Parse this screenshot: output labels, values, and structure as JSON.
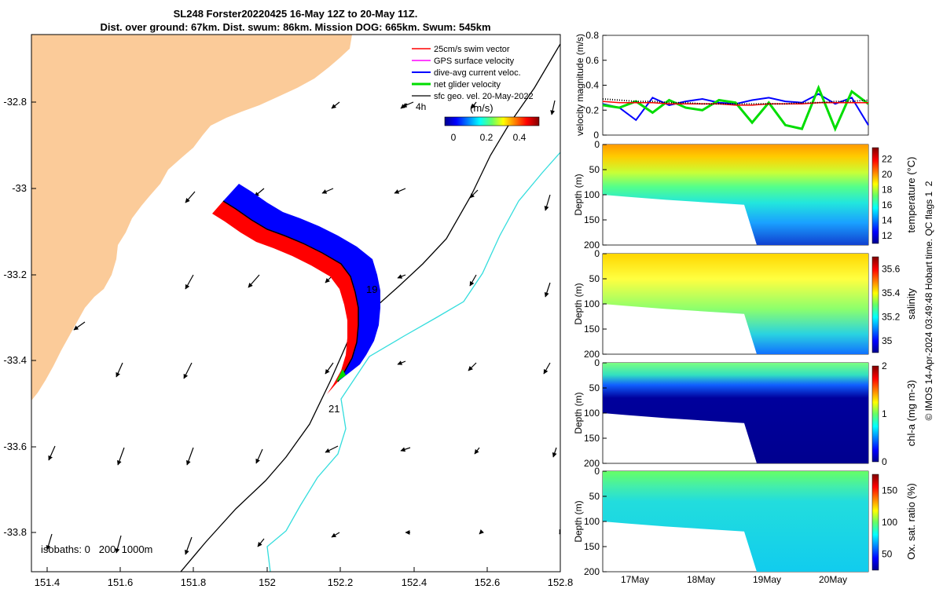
{
  "title": {
    "line1": "SL248 Forster20220425 16-May 12Z to 20-May 11Z.",
    "line2": "Dist. over ground: 67km. Dist. swum: 86km. Mission DOG: 665km. Swum: 545km"
  },
  "colors": {
    "land": "#FBCB99",
    "swim_vector": "#ff0000",
    "gps_velocity": "#ff00ff",
    "dive_avg": "#0000ff",
    "net_glider": "#00dd00",
    "geo_vel": "#000000",
    "isobath_200": "#000000",
    "isobath_1000": "#33dddd"
  },
  "map": {
    "legend": [
      {
        "key": "swim",
        "label": "25cm/s swim vector"
      },
      {
        "key": "gps",
        "label": "GPS surface velocity"
      },
      {
        "key": "dive",
        "label": "dive-avg current veloc."
      },
      {
        "key": "net",
        "label": "net glider velocity"
      },
      {
        "key": "geo",
        "label": "sfc geo. vel. 20-May-2022"
      }
    ],
    "scale_arrow_label": "4h",
    "colorbar_label": "(m/s)",
    "colorbar_ticks": [
      "0",
      "0.2",
      "0.4"
    ],
    "isobaths_label": "isobaths: 0   200  1000m",
    "day_labels": [
      "19",
      "21"
    ],
    "x_ticks": [
      "151.4",
      "151.6",
      "151.8",
      "152",
      "152.2",
      "152.4",
      "152.6",
      "152.8"
    ],
    "y_ticks": [
      "-32.8",
      "-33",
      "-33.2",
      "-33.4",
      "-33.6",
      "-33.8"
    ]
  },
  "chart_data": [
    {
      "type": "line",
      "ylabel": "velocity magnitude (m/s)",
      "ylim": [
        0,
        0.8
      ],
      "y_ticks": [
        "0",
        "0.2",
        "0.4",
        "0.6",
        "0.8"
      ],
      "x": [
        0,
        0.25,
        0.5,
        0.75,
        1,
        1.25,
        1.5,
        1.75,
        2,
        2.25,
        2.5,
        2.75,
        3,
        3.25,
        3.5,
        3.75,
        4
      ],
      "series": [
        {
          "key": "dive",
          "values": [
            0.25,
            0.22,
            0.12,
            0.3,
            0.24,
            0.27,
            0.29,
            0.26,
            0.25,
            0.28,
            0.3,
            0.27,
            0.26,
            0.33,
            0.25,
            0.3,
            0.08
          ]
        },
        {
          "key": "net",
          "values": [
            0.24,
            0.22,
            0.27,
            0.18,
            0.28,
            0.22,
            0.2,
            0.28,
            0.26,
            0.1,
            0.26,
            0.08,
            0.05,
            0.38,
            0.05,
            0.35,
            0.25
          ]
        },
        {
          "key": "swim",
          "values": [
            0.27,
            0.26,
            0.26,
            0.26,
            0.25,
            0.25,
            0.25,
            0.25,
            0.24,
            0.24,
            0.25,
            0.25,
            0.25,
            0.26,
            0.26,
            0.26,
            0.26
          ]
        },
        {
          "key": "geo",
          "values": [
            0.29,
            0.28,
            0.27,
            0.27,
            0.26,
            0.26,
            0.25,
            0.25,
            0.25,
            0.25,
            0.25,
            0.25,
            0.26,
            0.26,
            0.27,
            0.27,
            0.28
          ]
        }
      ]
    },
    {
      "type": "heatmap",
      "ylabel": "Depth (m)",
      "colorbar_label": "temperature (°C)",
      "colorbar_ticks": [
        "12",
        "14",
        "16",
        "18",
        "20",
        "22"
      ],
      "clim": [
        11,
        23.5
      ],
      "y_ticks": [
        "0",
        "50",
        "100",
        "150",
        "200"
      ],
      "ylim": [
        200,
        0
      ],
      "x_ticks": [
        "17May",
        "18May",
        "19May",
        "20May"
      ]
    },
    {
      "type": "heatmap",
      "ylabel": "Depth (m)",
      "colorbar_label": "salinity",
      "colorbar_ticks": [
        "35",
        "35.2",
        "35.4",
        "35.6"
      ],
      "clim": [
        34.9,
        35.7
      ],
      "y_ticks": [
        "0",
        "50",
        "100",
        "150",
        "200"
      ],
      "ylim": [
        200,
        0
      ],
      "x_ticks": [
        "17May",
        "18May",
        "19May",
        "20May"
      ]
    },
    {
      "type": "heatmap",
      "ylabel": "Depth (m)",
      "colorbar_label": "chl-a (mg m-3)",
      "colorbar_ticks": [
        "0",
        "1",
        "2"
      ],
      "clim": [
        0,
        2
      ],
      "y_ticks": [
        "0",
        "50",
        "100",
        "150",
        "200"
      ],
      "ylim": [
        200,
        0
      ],
      "x_ticks": [
        "17May",
        "18May",
        "19May",
        "20May"
      ]
    },
    {
      "type": "heatmap",
      "ylabel": "Depth (m)",
      "colorbar_label": "Ox. sat. ratio (%)",
      "colorbar_ticks": [
        "50",
        "100",
        "150"
      ],
      "clim": [
        25,
        175
      ],
      "y_ticks": [
        "0",
        "50",
        "100",
        "150",
        "200"
      ],
      "ylim": [
        200,
        0
      ],
      "x_ticks": [
        "17May",
        "18May",
        "19May",
        "20May"
      ]
    }
  ],
  "side_note": "© IMOS 14-Apr-2024 03:49:48 Hobart time. QC flags 1  2"
}
